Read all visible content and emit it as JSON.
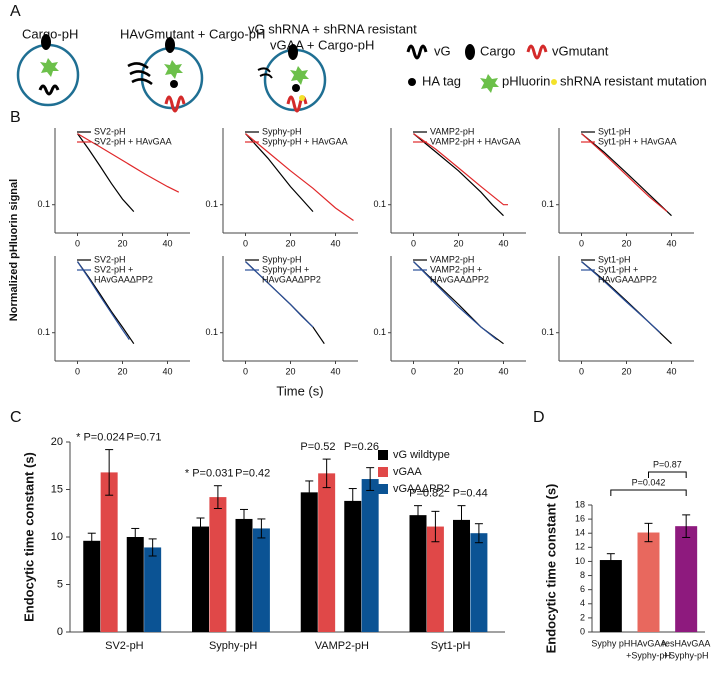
{
  "panel_labels": [
    "A",
    "B",
    "C",
    "D"
  ],
  "diagram": {
    "conditions": [
      "Cargo-pH",
      "HAvGmutant + Cargo-pH",
      "vG shRNA + shRNA resistant",
      "vGAA + Cargo-pH"
    ],
    "legend": [
      "vG",
      "Cargo",
      "vGmutant",
      "HA tag",
      "pHluorin",
      "shRNA resistant mutation"
    ]
  },
  "panel_b": {
    "ylabel": "Normalized pHluorin signal",
    "xlabel": "Time (s)"
  },
  "chart_data": [
    {
      "type": "line",
      "log_y": true,
      "xlim": [
        -10,
        50
      ],
      "ylim": [
        0.04,
        1.2
      ],
      "xticks": [
        0,
        20,
        40
      ],
      "yticks": [
        0.1
      ],
      "series": [
        {
          "name": "SV2-pH",
          "color": "#000000",
          "x": [
            0,
            5,
            10,
            15,
            20,
            25
          ],
          "values": [
            1,
            0.6,
            0.35,
            0.2,
            0.12,
            0.08
          ]
        },
        {
          "name": "SV2-pH + HAvGAA",
          "color": "#e0282a",
          "x": [
            0,
            10,
            20,
            30,
            40,
            45
          ],
          "values": [
            1,
            0.65,
            0.42,
            0.27,
            0.18,
            0.15
          ]
        }
      ]
    },
    {
      "type": "line",
      "log_y": true,
      "xlim": [
        -10,
        50
      ],
      "ylim": [
        0.04,
        1.2
      ],
      "xticks": [
        0,
        20,
        40
      ],
      "yticks": [
        0.1
      ],
      "series": [
        {
          "name": "Syphy-pH",
          "color": "#000000",
          "x": [
            0,
            10,
            20,
            25,
            30
          ],
          "values": [
            1,
            0.45,
            0.18,
            0.12,
            0.08
          ]
        },
        {
          "name": "Syphy-pH + HAvGAA",
          "color": "#e0282a",
          "x": [
            0,
            10,
            20,
            30,
            40,
            48
          ],
          "values": [
            1,
            0.55,
            0.3,
            0.17,
            0.09,
            0.06
          ]
        }
      ]
    },
    {
      "type": "line",
      "log_y": true,
      "xlim": [
        -10,
        50
      ],
      "ylim": [
        0.04,
        1.2
      ],
      "xticks": [
        0,
        20,
        40
      ],
      "yticks": [
        0.1
      ],
      "series": [
        {
          "name": "VAMP2-pH",
          "color": "#000000",
          "x": [
            0,
            10,
            20,
            30,
            35,
            40
          ],
          "values": [
            1,
            0.55,
            0.3,
            0.15,
            0.1,
            0.07
          ]
        },
        {
          "name": "VAMP2-pH + HAvGAA",
          "color": "#e0282a",
          "x": [
            0,
            10,
            20,
            30,
            40,
            42
          ],
          "values": [
            1,
            0.6,
            0.33,
            0.18,
            0.1,
            0.1
          ]
        }
      ]
    },
    {
      "type": "line",
      "log_y": true,
      "xlim": [
        -10,
        50
      ],
      "ylim": [
        0.04,
        1.2
      ],
      "xticks": [
        0,
        20,
        40
      ],
      "yticks": [
        0.1
      ],
      "series": [
        {
          "name": "Syt1-pH",
          "color": "#000000",
          "x": [
            0,
            10,
            20,
            30,
            40
          ],
          "values": [
            1,
            0.55,
            0.28,
            0.14,
            0.07
          ]
        },
        {
          "name": "Syt1-pH + HAvGAA",
          "color": "#e0282a",
          "x": [
            0,
            10,
            20,
            30,
            38
          ],
          "values": [
            1,
            0.52,
            0.26,
            0.13,
            0.08
          ]
        }
      ]
    },
    {
      "type": "line",
      "log_y": true,
      "xlim": [
        -10,
        50
      ],
      "ylim": [
        0.04,
        1.2
      ],
      "xticks": [
        0,
        20,
        40
      ],
      "yticks": [
        0.1
      ],
      "series": [
        {
          "name": [
            "SV2-pH"
          ],
          "color": "#000000",
          "x": [
            0,
            5,
            10,
            15,
            20,
            25
          ],
          "values": [
            1,
            0.6,
            0.35,
            0.2,
            0.12,
            0.07
          ]
        },
        {
          "name": [
            "SV2-pH +",
            "HAvGAAΔPP2"
          ],
          "color": "#2a4f9a",
          "x": [
            0,
            5,
            10,
            15,
            20,
            23
          ],
          "values": [
            1,
            0.58,
            0.33,
            0.19,
            0.11,
            0.08
          ]
        }
      ]
    },
    {
      "type": "line",
      "log_y": true,
      "xlim": [
        -10,
        50
      ],
      "ylim": [
        0.04,
        1.2
      ],
      "xticks": [
        0,
        20,
        40
      ],
      "yticks": [
        0.1
      ],
      "series": [
        {
          "name": [
            "Syphy-pH"
          ],
          "color": "#000000",
          "x": [
            0,
            10,
            20,
            30,
            35
          ],
          "values": [
            1,
            0.5,
            0.25,
            0.12,
            0.07
          ]
        },
        {
          "name": [
            "Syphy-pH +",
            "HAvGAAΔPP2"
          ],
          "color": "#2a4f9a",
          "x": [
            0,
            10,
            20,
            25,
            30
          ],
          "values": [
            1,
            0.5,
            0.25,
            0.17,
            0.12
          ]
        }
      ]
    },
    {
      "type": "line",
      "log_y": true,
      "xlim": [
        -10,
        50
      ],
      "ylim": [
        0.04,
        1.2
      ],
      "xticks": [
        0,
        20,
        40
      ],
      "yticks": [
        0.1
      ],
      "series": [
        {
          "name": [
            "VAMP2-pH"
          ],
          "color": "#000000",
          "x": [
            0,
            10,
            20,
            30,
            40
          ],
          "values": [
            1,
            0.5,
            0.25,
            0.12,
            0.07
          ]
        },
        {
          "name": [
            "VAMP2-pH +",
            "HAvGAAΔPP2"
          ],
          "color": "#2a4f9a",
          "x": [
            0,
            10,
            20,
            30,
            37
          ],
          "values": [
            1,
            0.48,
            0.23,
            0.12,
            0.08
          ]
        }
      ]
    },
    {
      "type": "line",
      "log_y": true,
      "xlim": [
        -10,
        50
      ],
      "ylim": [
        0.04,
        1.2
      ],
      "xticks": [
        0,
        20,
        40
      ],
      "yticks": [
        0.1
      ],
      "series": [
        {
          "name": [
            "Syt1-pH"
          ],
          "color": "#000000",
          "x": [
            0,
            10,
            20,
            30,
            40
          ],
          "values": [
            1,
            0.55,
            0.28,
            0.14,
            0.07
          ]
        },
        {
          "name": [
            "Syt1-pH +",
            "HAvGAAΔPP2"
          ],
          "color": "#2a4f9a",
          "x": [
            0,
            10,
            20,
            30,
            35
          ],
          "values": [
            1,
            0.53,
            0.27,
            0.14,
            0.1
          ]
        }
      ]
    },
    {
      "type": "bar",
      "ylabel": "Endocytic time constant (s)",
      "categories": [
        "SV2-pH",
        "Syphy-pH",
        "VAMP2-pH",
        "Syt1-pH"
      ],
      "ylim": [
        0,
        20
      ],
      "yticks": [
        0,
        5,
        10,
        15,
        20
      ],
      "legend_position": "upper right",
      "series": [
        {
          "name": "vG wildtype",
          "color": "#000000",
          "values": [
            9.6,
            11.1,
            14.7,
            12.3
          ],
          "errors": [
            0.8,
            0.9,
            1.2,
            1.0
          ]
        },
        {
          "name": "vGAA",
          "color": "#e04848",
          "values": [
            16.8,
            14.2,
            16.7,
            11.1
          ],
          "errors": [
            2.4,
            1.2,
            1.5,
            1.6
          ]
        },
        {
          "color": "#000000",
          "values": [
            10.0,
            11.9,
            13.8,
            11.8
          ],
          "errors": [
            0.9,
            1.0,
            1.3,
            1.5
          ]
        },
        {
          "name": "vGAAΔPP2",
          "color": "#0b5394",
          "values": [
            8.9,
            10.9,
            16.1,
            10.4
          ],
          "errors": [
            0.9,
            1.0,
            1.2,
            1.0
          ]
        }
      ],
      "annotations": [
        "* P=0.024",
        "P=0.71",
        "* P=0.031",
        "P=0.42",
        "P=0.52",
        "P=0.26",
        "P=0.82",
        "P=0.44"
      ]
    },
    {
      "type": "bar",
      "ylabel": "Endocytic time constant (s)",
      "categories": [
        [
          "Syphy pH"
        ],
        [
          "HAvGAA",
          "+Syphy-pH"
        ],
        [
          "resHAvGAA",
          "+Syphy-pH"
        ]
      ],
      "colors": [
        "#000000",
        "#e8685e",
        "#8e1a7e"
      ],
      "values": [
        10.2,
        14.1,
        15.0
      ],
      "errors": [
        0.9,
        1.3,
        1.6
      ],
      "ylim": [
        0,
        18
      ],
      "yticks": [
        0,
        2,
        4,
        6,
        8,
        10,
        12,
        14,
        16,
        18
      ],
      "annotations": [
        "P=0.042",
        "P=0.87"
      ]
    }
  ]
}
